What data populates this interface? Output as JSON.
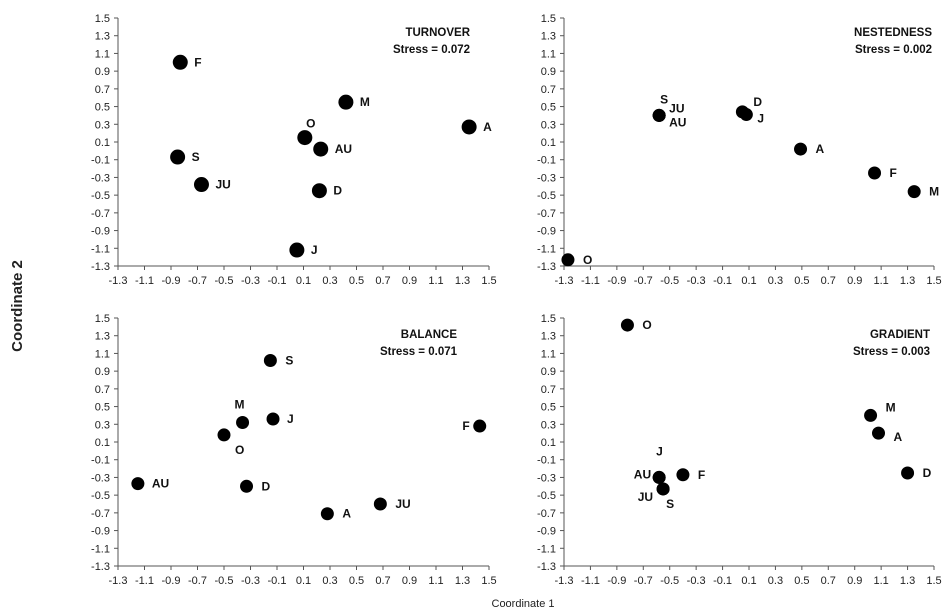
{
  "figure": {
    "ylabel": "Coordinate 2",
    "xlabel": "Coordinate 1"
  },
  "chart_data": [
    {
      "type": "scatter",
      "title": "TURNOVER",
      "subtitle": "Stress = 0.072",
      "xlim": [
        -1.3,
        1.5
      ],
      "ylim": [
        -1.3,
        1.5
      ],
      "points": [
        {
          "label": "F",
          "x": -0.83,
          "y": 1.0
        },
        {
          "label": "M",
          "x": 0.42,
          "y": 0.55
        },
        {
          "label": "A",
          "x": 1.35,
          "y": 0.27
        },
        {
          "label": "O",
          "x": 0.11,
          "y": 0.15
        },
        {
          "label": "AU",
          "x": 0.23,
          "y": 0.02
        },
        {
          "label": "S",
          "x": -0.85,
          "y": -0.07
        },
        {
          "label": "JU",
          "x": -0.67,
          "y": -0.38
        },
        {
          "label": "D",
          "x": 0.22,
          "y": -0.45
        },
        {
          "label": "J",
          "x": 0.05,
          "y": -1.12
        }
      ]
    },
    {
      "type": "scatter",
      "title": "NESTEDNESS",
      "subtitle": "Stress = 0.002",
      "xlim": [
        -1.3,
        1.5
      ],
      "ylim": [
        -1.3,
        1.5
      ],
      "points": [
        {
          "label": "S",
          "x": -0.58,
          "y": 0.4
        },
        {
          "label": "JU",
          "x": -0.58,
          "y": 0.4
        },
        {
          "label": "AU",
          "x": -0.58,
          "y": 0.4
        },
        {
          "label": "D",
          "x": 0.05,
          "y": 0.44
        },
        {
          "label": "J",
          "x": 0.08,
          "y": 0.41
        },
        {
          "label": "A",
          "x": 0.49,
          "y": 0.02
        },
        {
          "label": "F",
          "x": 1.05,
          "y": -0.25
        },
        {
          "label": "M",
          "x": 1.35,
          "y": -0.46
        },
        {
          "label": "O",
          "x": -1.27,
          "y": -1.23
        }
      ]
    },
    {
      "type": "scatter",
      "title": "BALANCE",
      "subtitle": "Stress = 0.071",
      "xlim": [
        -1.3,
        1.5
      ],
      "ylim": [
        -1.3,
        1.5
      ],
      "points": [
        {
          "label": "S",
          "x": -0.15,
          "y": 1.02
        },
        {
          "label": "M",
          "x": -0.36,
          "y": 0.32
        },
        {
          "label": "J",
          "x": -0.13,
          "y": 0.36
        },
        {
          "label": "O",
          "x": -0.5,
          "y": 0.18
        },
        {
          "label": "F",
          "x": 1.43,
          "y": 0.28
        },
        {
          "label": "AU",
          "x": -1.15,
          "y": -0.37
        },
        {
          "label": "D",
          "x": -0.33,
          "y": -0.4
        },
        {
          "label": "JU",
          "x": 0.68,
          "y": -0.6
        },
        {
          "label": "A",
          "x": 0.28,
          "y": -0.71
        }
      ]
    },
    {
      "type": "scatter",
      "title": "GRADIENT",
      "subtitle": "Stress = 0.003",
      "xlim": [
        -1.3,
        1.5
      ],
      "ylim": [
        -1.3,
        1.5
      ],
      "points": [
        {
          "label": "O",
          "x": -0.82,
          "y": 1.42
        },
        {
          "label": "M",
          "x": 1.02,
          "y": 0.4
        },
        {
          "label": "A",
          "x": 1.08,
          "y": 0.2
        },
        {
          "label": "D",
          "x": 1.3,
          "y": -0.25
        },
        {
          "label": "J",
          "x": -0.58,
          "y": -0.3
        },
        {
          "label": "AU",
          "x": -0.58,
          "y": -0.3
        },
        {
          "label": "F",
          "x": -0.4,
          "y": -0.27
        },
        {
          "label": "JU",
          "x": -0.55,
          "y": -0.43
        },
        {
          "label": "S",
          "x": -0.55,
          "y": -0.43
        }
      ]
    }
  ],
  "tick_labels": [
    "-1.3",
    "-1.1",
    "-0.9",
    "-0.7",
    "-0.5",
    "-0.3",
    "-0.1",
    "0.1",
    "0.3",
    "0.5",
    "0.7",
    "0.9",
    "1.1",
    "1.3",
    "1.5"
  ]
}
